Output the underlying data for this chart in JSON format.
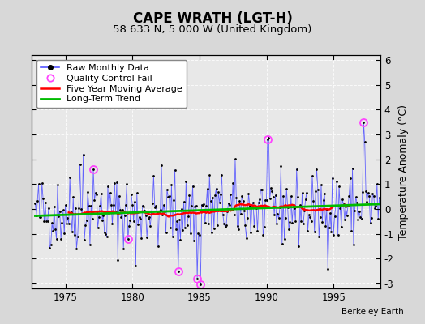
{
  "title": "CAPE WRATH (LGT-H)",
  "subtitle": "58.633 N, 5.000 W (United Kingdom)",
  "ylabel": "Temperature Anomaly (°C)",
  "credit": "Berkeley Earth",
  "xlim": [
    1972.5,
    1998.5
  ],
  "ylim": [
    -3.2,
    6.2
  ],
  "yticks": [
    -3,
    -2,
    -1,
    0,
    1,
    2,
    3,
    4,
    5,
    6
  ],
  "xticks": [
    1975,
    1980,
    1985,
    1990,
    1995
  ],
  "bg_color": "#d8d8d8",
  "plot_bg_color": "#e8e8e8",
  "line_color": "#5555ff",
  "marker_color": "#000000",
  "ma_color": "#ff0000",
  "trend_color": "#00bb00",
  "qc_color": "#ff44ff",
  "seed": 42,
  "n_months": 312,
  "start_year": 1972.75,
  "ma_window": 60,
  "title_fontsize": 12,
  "subtitle_fontsize": 9.5,
  "legend_fontsize": 8,
  "tick_fontsize": 8.5,
  "ylabel_fontsize": 9
}
